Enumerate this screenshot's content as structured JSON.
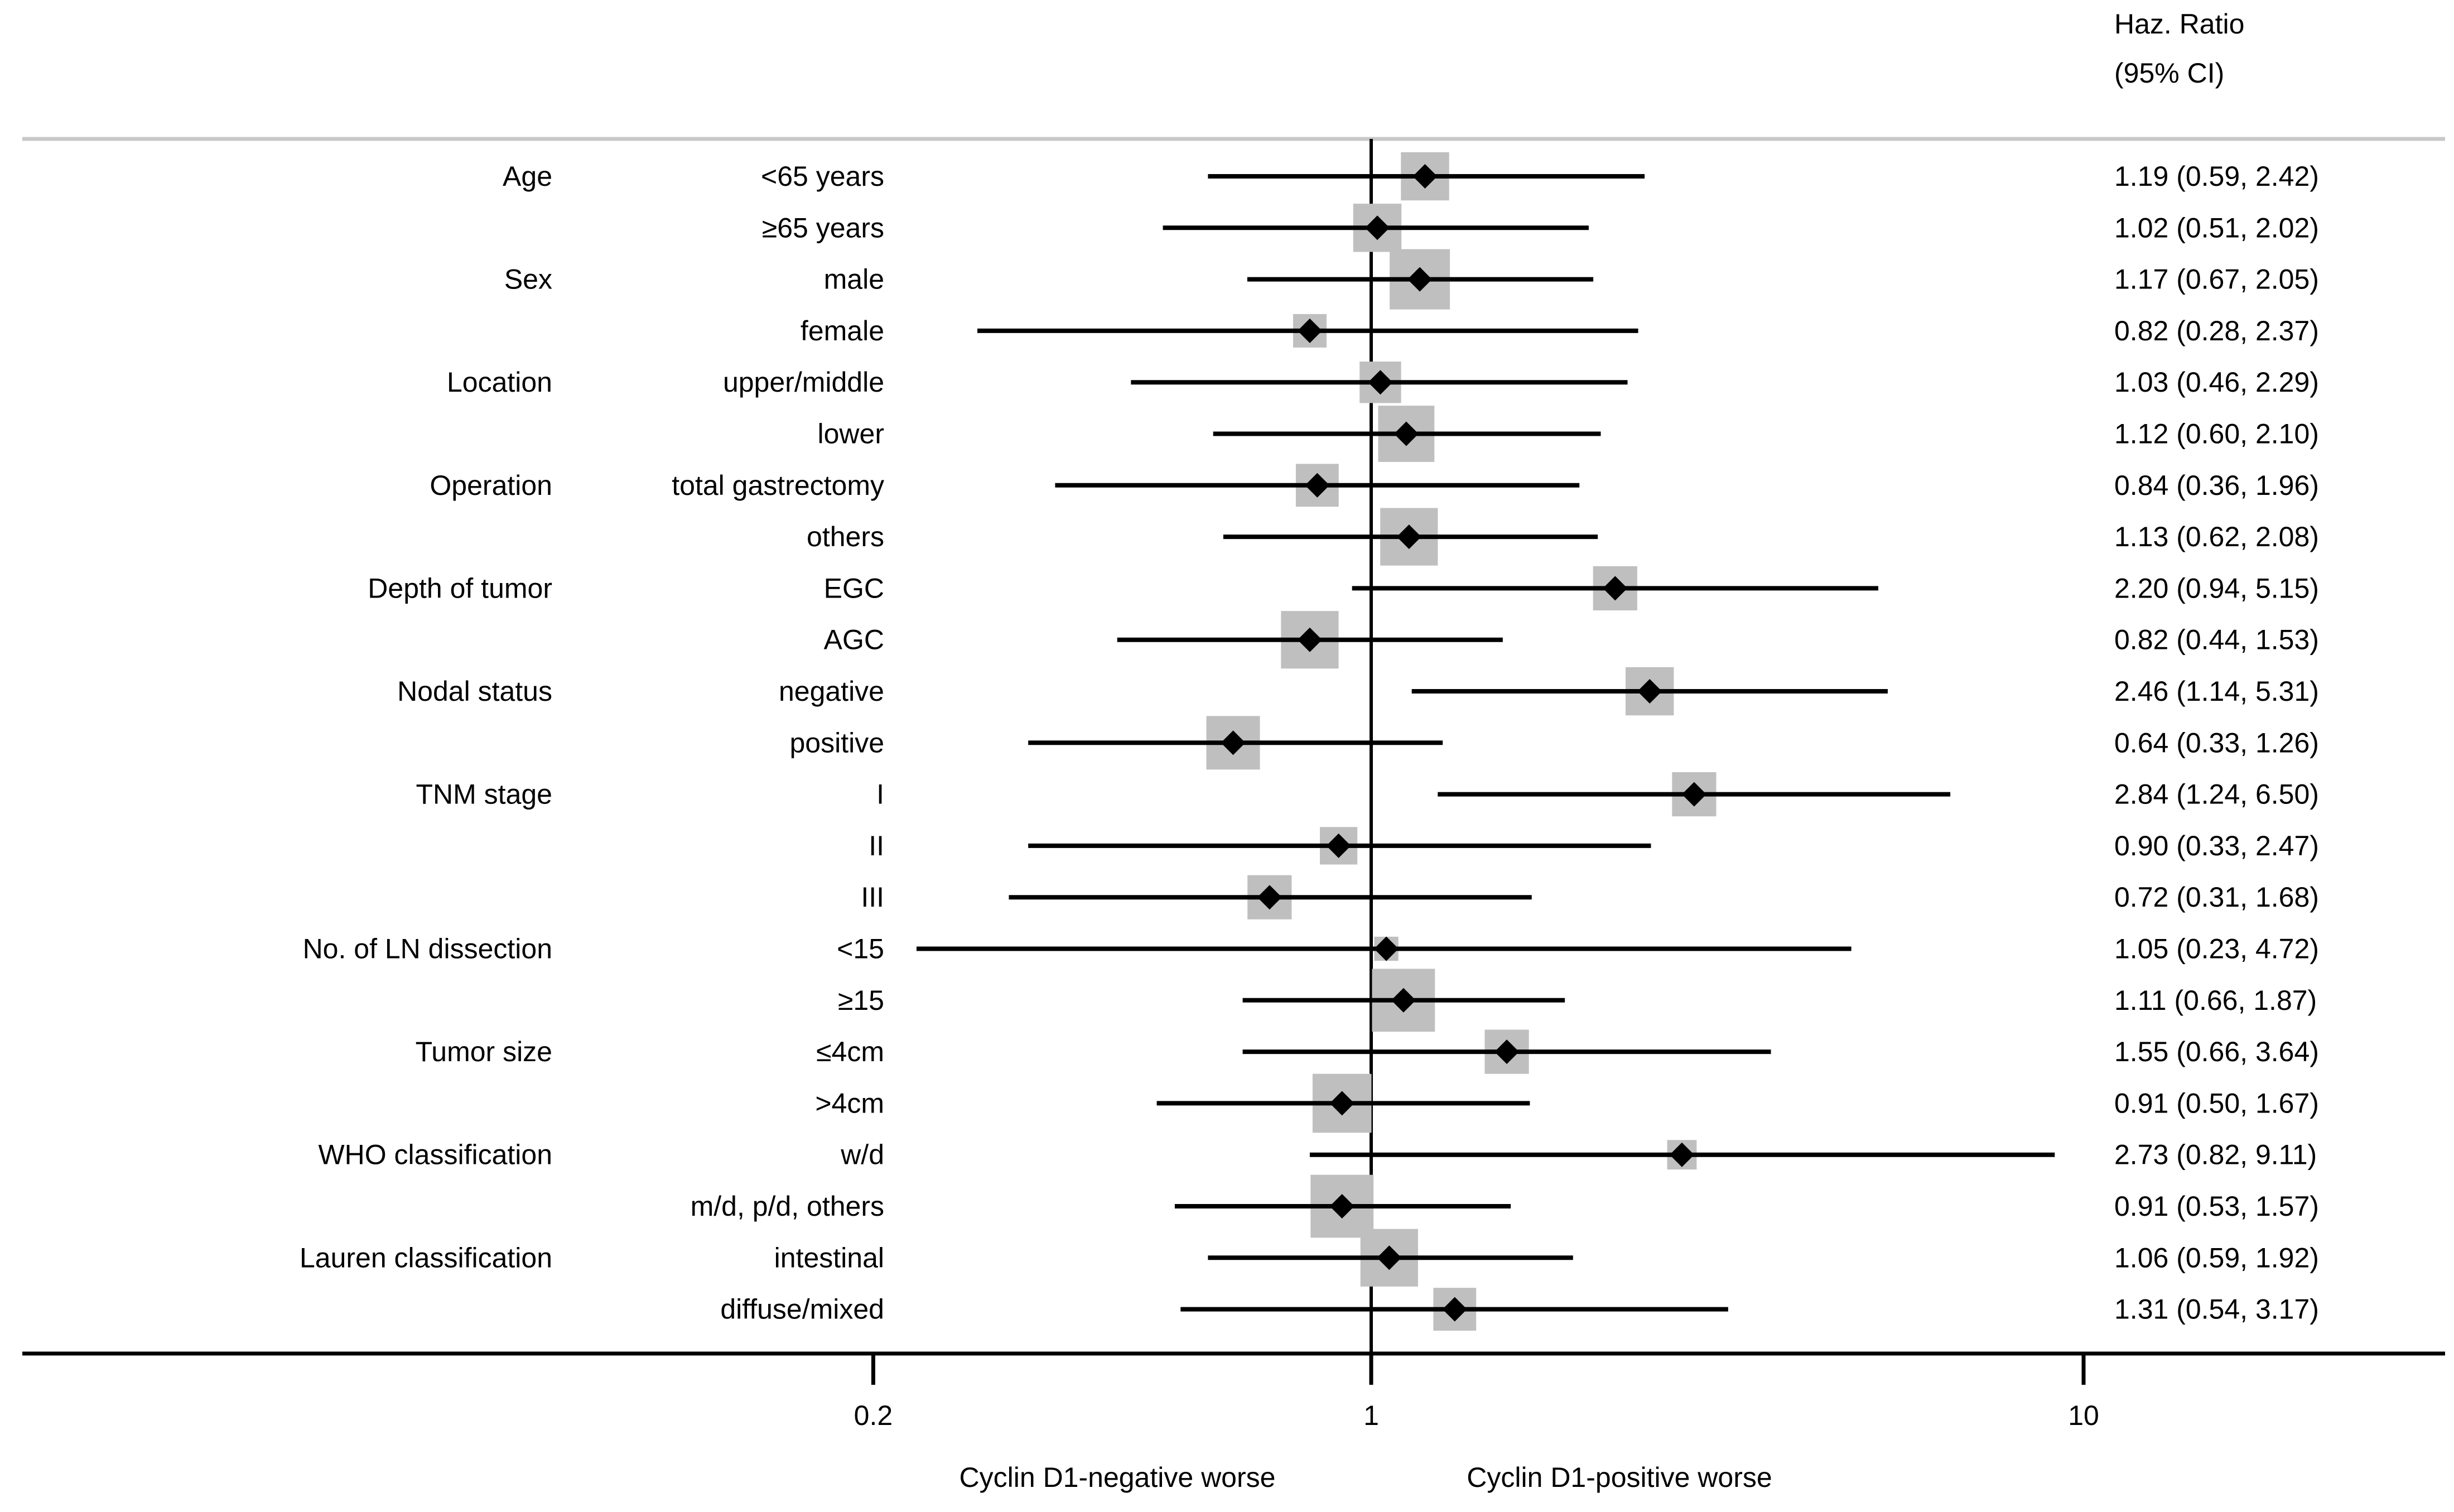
{
  "chart_data": {
    "type": "forest",
    "header": {
      "line1": "Haz. Ratio",
      "line2": "(95% CI)"
    },
    "x_scale": "log",
    "reference_line": 1,
    "x_ticks": [
      {
        "value": 0.2,
        "label": "0.2"
      },
      {
        "value": 1,
        "label": "1"
      },
      {
        "value": 10,
        "label": "10"
      }
    ],
    "direction_labels": {
      "left": "Cyclin D1-negative worse",
      "right": "Cyclin D1-positive worse"
    },
    "rows": [
      {
        "group": "Age",
        "subgroup": "<65 years",
        "hr": 1.19,
        "lo": 0.59,
        "hi": 2.42,
        "weight": 0.72,
        "ci_text": "1.19 (0.59, 2.42)"
      },
      {
        "group": "",
        "subgroup": "≥65 years",
        "hr": 1.02,
        "lo": 0.51,
        "hi": 2.02,
        "weight": 0.72,
        "ci_text": "1.02 (0.51, 2.02)"
      },
      {
        "group": "Sex",
        "subgroup": "male",
        "hr": 1.17,
        "lo": 0.67,
        "hi": 2.05,
        "weight": 0.9,
        "ci_text": "1.17 (0.67, 2.05)"
      },
      {
        "group": "",
        "subgroup": "female",
        "hr": 0.82,
        "lo": 0.28,
        "hi": 2.37,
        "weight": 0.5,
        "ci_text": "0.82 (0.28, 2.37)"
      },
      {
        "group": "Location",
        "subgroup": "upper/middle",
        "hr": 1.03,
        "lo": 0.46,
        "hi": 2.29,
        "weight": 0.62,
        "ci_text": "1.03 (0.46, 2.29)"
      },
      {
        "group": "",
        "subgroup": "lower",
        "hr": 1.12,
        "lo": 0.6,
        "hi": 2.1,
        "weight": 0.84,
        "ci_text": "1.12 (0.60, 2.10)"
      },
      {
        "group": "Operation",
        "subgroup": "total gastrectomy",
        "hr": 0.84,
        "lo": 0.36,
        "hi": 1.96,
        "weight": 0.64,
        "ci_text": "0.84 (0.36, 1.96)"
      },
      {
        "group": "",
        "subgroup": "others",
        "hr": 1.13,
        "lo": 0.62,
        "hi": 2.08,
        "weight": 0.86,
        "ci_text": "1.13 (0.62, 2.08)"
      },
      {
        "group": "Depth of tumor",
        "subgroup": "EGC",
        "hr": 2.2,
        "lo": 0.94,
        "hi": 5.15,
        "weight": 0.66,
        "ci_text": "2.20 (0.94, 5.15)"
      },
      {
        "group": "",
        "subgroup": "AGC",
        "hr": 0.82,
        "lo": 0.44,
        "hi": 1.53,
        "weight": 0.86,
        "ci_text": "0.82 (0.44, 1.53)"
      },
      {
        "group": "Nodal status",
        "subgroup": "negative",
        "hr": 2.46,
        "lo": 1.14,
        "hi": 5.31,
        "weight": 0.72,
        "ci_text": "2.46 (1.14, 5.31)"
      },
      {
        "group": "",
        "subgroup": "positive",
        "hr": 0.64,
        "lo": 0.33,
        "hi": 1.26,
        "weight": 0.8,
        "ci_text": "0.64 (0.33, 1.26)"
      },
      {
        "group": "TNM stage",
        "subgroup": "I",
        "hr": 2.84,
        "lo": 1.24,
        "hi": 6.5,
        "weight": 0.66,
        "ci_text": "2.84 (1.24, 6.50)"
      },
      {
        "group": "",
        "subgroup": "II",
        "hr": 0.9,
        "lo": 0.33,
        "hi": 2.47,
        "weight": 0.56,
        "ci_text": "0.90 (0.33, 2.47)"
      },
      {
        "group": "",
        "subgroup": "III",
        "hr": 0.72,
        "lo": 0.31,
        "hi": 1.68,
        "weight": 0.66,
        "ci_text": "0.72 (0.31, 1.68)"
      },
      {
        "group": "No. of LN dissection",
        "subgroup": "<15",
        "hr": 1.05,
        "lo": 0.23,
        "hi": 4.72,
        "weight": 0.36,
        "ci_text": "1.05 (0.23, 4.72)"
      },
      {
        "group": "",
        "subgroup": "≥15",
        "hr": 1.11,
        "lo": 0.66,
        "hi": 1.87,
        "weight": 0.94,
        "ci_text": "1.11 (0.66, 1.87)"
      },
      {
        "group": "Tumor size",
        "subgroup": "≤4cm",
        "hr": 1.55,
        "lo": 0.66,
        "hi": 3.64,
        "weight": 0.66,
        "ci_text": "1.55 (0.66, 3.64)"
      },
      {
        "group": "",
        "subgroup": ">4cm",
        "hr": 0.91,
        "lo": 0.5,
        "hi": 1.67,
        "weight": 0.88,
        "ci_text": "0.91 (0.50, 1.67)"
      },
      {
        "group": "WHO classification",
        "subgroup": "w/d",
        "hr": 2.73,
        "lo": 0.82,
        "hi": 9.11,
        "weight": 0.44,
        "ci_text": "2.73 (0.82, 9.11)"
      },
      {
        "group": "",
        "subgroup": "m/d, p/d, others",
        "hr": 0.91,
        "lo": 0.53,
        "hi": 1.57,
        "weight": 0.94,
        "ci_text": "0.91 (0.53, 1.57)"
      },
      {
        "group": "Lauren classification",
        "subgroup": "intestinal",
        "hr": 1.06,
        "lo": 0.59,
        "hi": 1.92,
        "weight": 0.86,
        "ci_text": "1.06 (0.59, 1.92)"
      },
      {
        "group": "",
        "subgroup": "diffuse/mixed",
        "hr": 1.31,
        "lo": 0.54,
        "hi": 3.17,
        "weight": 0.64,
        "ci_text": "1.31 (0.54, 3.17)"
      }
    ],
    "colors": {
      "marker": "#000000",
      "weight_box": "#bfbfbf",
      "header_rule": "#c8c8c8",
      "axis": "#000000"
    }
  }
}
